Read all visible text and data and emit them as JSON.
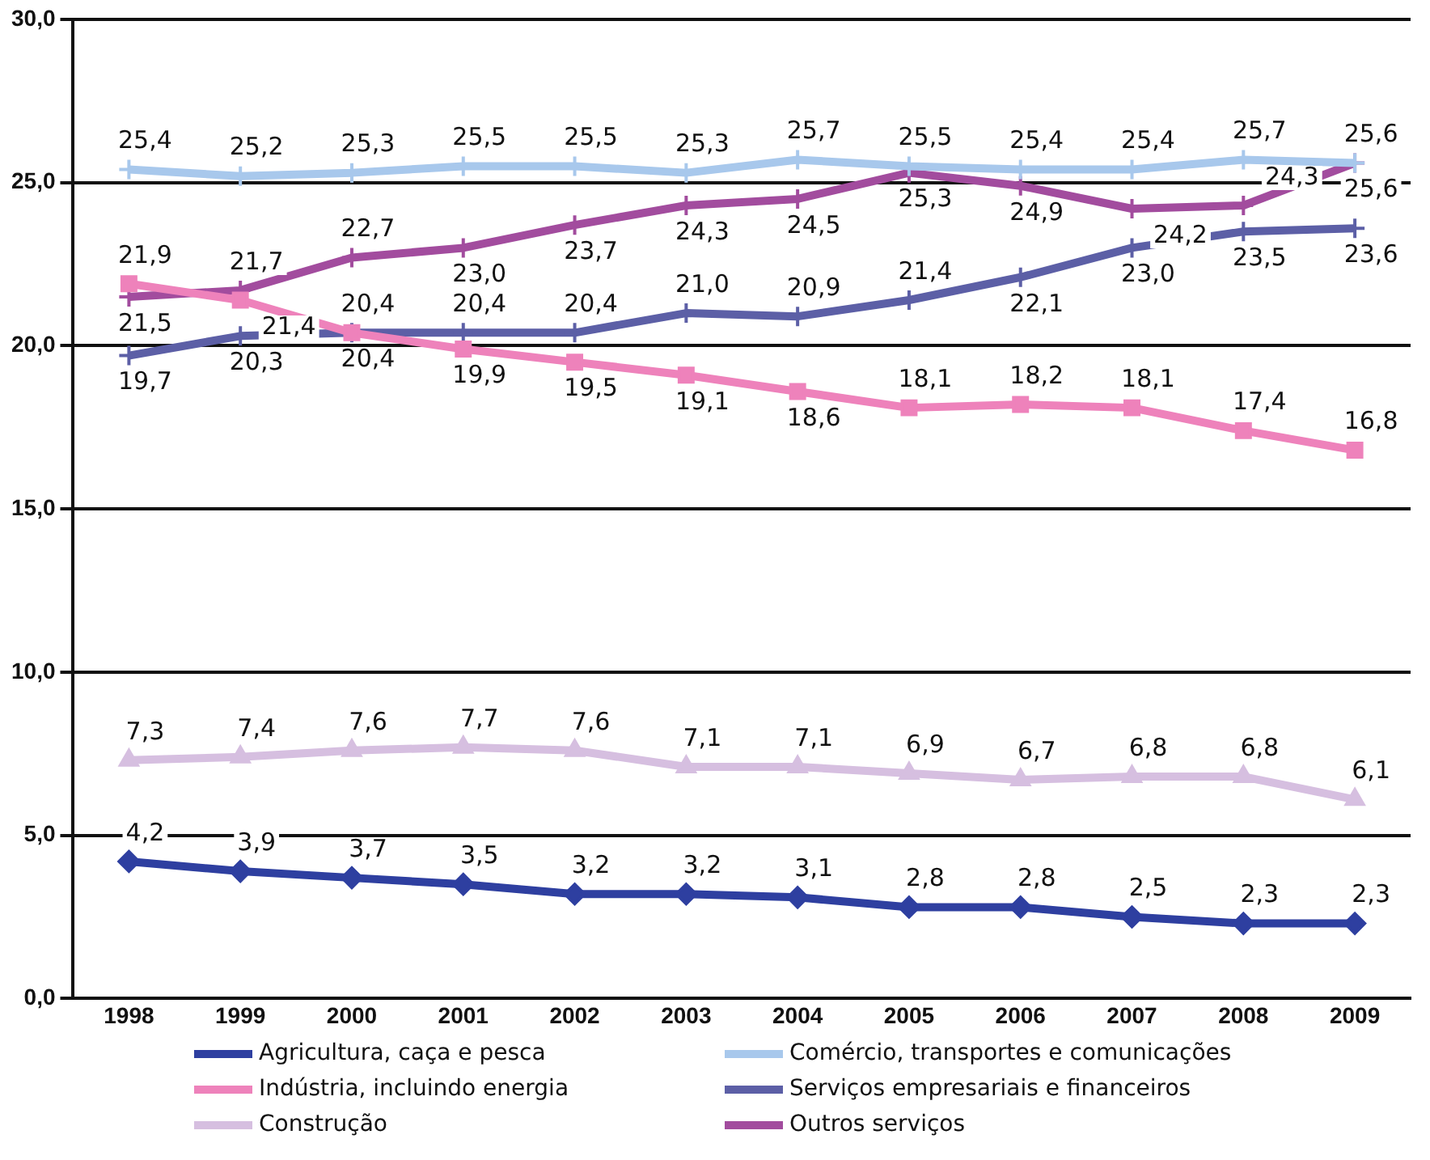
{
  "chart_data": {
    "type": "line",
    "categories": [
      "1998",
      "1999",
      "2000",
      "2001",
      "2002",
      "2003",
      "2004",
      "2005",
      "2006",
      "2007",
      "2008",
      "2009"
    ],
    "ylim": [
      0,
      30
    ],
    "yticks": [
      {
        "value": 0,
        "label": "0,0"
      },
      {
        "value": 5,
        "label": "5,0"
      },
      {
        "value": 10,
        "label": "10,0"
      },
      {
        "value": 15,
        "label": "15,0"
      },
      {
        "value": 20,
        "label": "20,0"
      },
      {
        "value": 25,
        "label": "25,0"
      },
      {
        "value": 30,
        "label": "30,0"
      }
    ],
    "grid": "y",
    "legend": "bottom",
    "series": [
      {
        "name": "Agricultura, caça e pesca",
        "color": "#2e3fa0",
        "marker": "diamond",
        "values": [
          4.2,
          3.9,
          3.7,
          3.5,
          3.2,
          3.2,
          3.1,
          2.8,
          2.8,
          2.5,
          2.3,
          2.3
        ],
        "value_labels": [
          "4,2",
          "3,9",
          "3,7",
          "3,5",
          "3,2",
          "3,2",
          "3,1",
          "2,8",
          "2,8",
          "2,5",
          "2,3",
          "2,3"
        ]
      },
      {
        "name": "Comércio, transportes e comunicações",
        "color": "#a8c8ec",
        "marker": "cross",
        "values": [
          25.4,
          25.2,
          25.3,
          25.5,
          25.5,
          25.3,
          25.7,
          25.5,
          25.4,
          25.4,
          25.7,
          25.6
        ],
        "value_labels": [
          "25,4",
          "25,2",
          "25,3",
          "25,5",
          "25,5",
          "25,3",
          "25,7",
          "25,5",
          "25,4",
          "25,4",
          "25,7",
          "25,6"
        ]
      },
      {
        "name": "Indústria, incluindo energia",
        "color": "#ee82bb",
        "marker": "square",
        "values": [
          21.9,
          21.4,
          20.4,
          19.9,
          19.5,
          19.1,
          18.6,
          18.1,
          18.2,
          18.1,
          17.4,
          16.8
        ],
        "value_labels": [
          "21,9",
          "21,4",
          "20,4",
          "19,9",
          "19,5",
          "19,1",
          "18,6",
          "18,1",
          "18,2",
          "18,1",
          "17,4",
          "16,8"
        ]
      },
      {
        "name": "Serviços empresariais e financeiros",
        "color": "#5c5fa6",
        "marker": "cross",
        "values": [
          19.7,
          20.3,
          20.4,
          20.4,
          20.4,
          21.0,
          20.9,
          21.4,
          22.1,
          23.0,
          23.5,
          23.6
        ],
        "value_labels": [
          "19,7",
          "20,3",
          "20,4",
          "20,4",
          "20,4",
          "21,0",
          "20,9",
          "21,4",
          "22,1",
          "23,0",
          "23,5",
          "23,6"
        ]
      },
      {
        "name": "Construção",
        "color": "#d6bfe0",
        "marker": "triangle",
        "values": [
          7.3,
          7.4,
          7.6,
          7.7,
          7.6,
          7.1,
          7.1,
          6.9,
          6.7,
          6.8,
          6.8,
          6.1
        ],
        "value_labels": [
          "7,3",
          "7,4",
          "7,6",
          "7,7",
          "7,6",
          "7,1",
          "7,1",
          "6,9",
          "6,7",
          "6,8",
          "6,8",
          "6,1"
        ]
      },
      {
        "name": "Outros serviços",
        "color": "#a24c9e",
        "marker": "cross",
        "values": [
          21.5,
          21.7,
          22.7,
          23.0,
          23.7,
          24.3,
          24.5,
          25.3,
          24.9,
          24.2,
          24.3,
          25.6
        ],
        "value_labels": [
          "21,5",
          "21,7",
          "22,7",
          "23,0",
          "23,7",
          "24,3",
          "24,5",
          "25,3",
          "24,9",
          "24,2",
          "24,3",
          "25,6"
        ]
      }
    ]
  }
}
